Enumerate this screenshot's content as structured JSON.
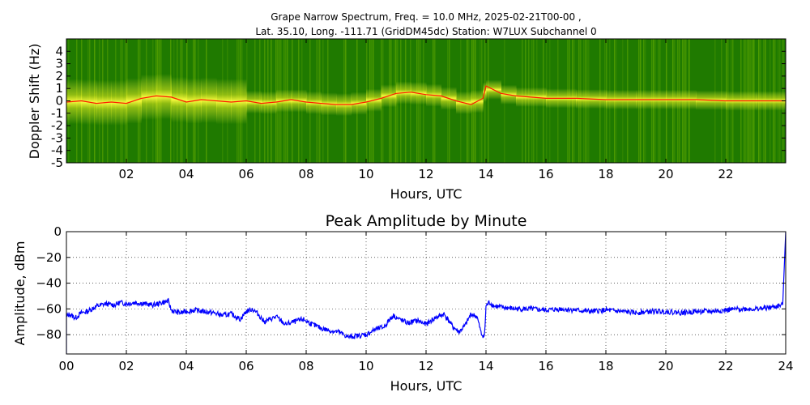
{
  "figure": {
    "title_line1": "Grape Narrow Spectrum, Freq. = 10.0 MHz, 2025-02-21T00-00 ,",
    "title_line2": "Lat.  35.10, Long. -111.71 (GridDM45dc) Station: W7LUX Subchannel 0"
  },
  "chart_data": [
    {
      "type": "heatmap",
      "title": "",
      "xlabel": "Hours, UTC",
      "ylabel": "Doppler Shift (Hz)",
      "xlim": [
        0,
        24
      ],
      "ylim": [
        -5,
        5
      ],
      "x_ticks": [
        2,
        4,
        6,
        8,
        10,
        12,
        14,
        16,
        18,
        20,
        22
      ],
      "x_tick_labels": [
        "02",
        "04",
        "06",
        "08",
        "10",
        "12",
        "14",
        "16",
        "18",
        "20",
        "22"
      ],
      "y_ticks": [
        4,
        3,
        2,
        1,
        0,
        -1,
        -2,
        -3,
        -4,
        -5
      ],
      "y_tick_labels": [
        "4",
        "3",
        "2",
        "1",
        "0",
        "-1",
        "-2",
        "-3",
        "-4",
        "-5"
      ],
      "colors": {
        "background": "#1f7a00",
        "mid": "#7fbf00",
        "high": "#ffff30",
        "peak": "#ff1a00"
      },
      "peak_trace": {
        "x": [
          0,
          0.5,
          1,
          1.5,
          2,
          2.5,
          3,
          3.5,
          4,
          4.5,
          5,
          5.5,
          6,
          6.5,
          7,
          7.5,
          8,
          8.5,
          9,
          9.5,
          10,
          10.5,
          11,
          11.5,
          12,
          12.5,
          13,
          13.5,
          13.9,
          14,
          14.5,
          15,
          16,
          17,
          18,
          19,
          20,
          21,
          22,
          23,
          24
        ],
        "y": [
          -0.1,
          0.0,
          -0.2,
          -0.1,
          -0.2,
          0.2,
          0.4,
          0.3,
          -0.1,
          0.1,
          0.0,
          -0.1,
          0.0,
          -0.2,
          -0.1,
          0.1,
          -0.1,
          -0.2,
          -0.3,
          -0.3,
          -0.1,
          0.2,
          0.6,
          0.7,
          0.5,
          0.4,
          0.0,
          -0.3,
          0.2,
          1.2,
          0.6,
          0.4,
          0.2,
          0.2,
          0.1,
          0.1,
          0.1,
          0.1,
          0.0,
          0.0,
          0.0
        ]
      }
    },
    {
      "type": "line",
      "title": "Peak Amplitude by Minute",
      "xlabel": "Hours, UTC",
      "ylabel": "Amplitude, dBm",
      "xlim": [
        0,
        24
      ],
      "ylim": [
        -95,
        0
      ],
      "grid": true,
      "x_ticks": [
        0,
        2,
        4,
        6,
        8,
        10,
        12,
        14,
        16,
        18,
        20,
        22,
        24
      ],
      "x_tick_labels": [
        "00",
        "02",
        "04",
        "06",
        "08",
        "10",
        "12",
        "14",
        "16",
        "18",
        "20",
        "22",
        "24"
      ],
      "y_ticks": [
        0,
        -20,
        -40,
        -60,
        -80
      ],
      "y_tick_labels": [
        "0",
        "−20",
        "−40",
        "−60",
        "−80"
      ],
      "line_color": "#0000ff",
      "series": [
        {
          "x": [
            0,
            0.1,
            0.3,
            0.5,
            0.7,
            1.0,
            1.3,
            1.6,
            1.8,
            2.0,
            2.3,
            2.6,
            2.9,
            3.2,
            3.4,
            3.5,
            3.6,
            3.8,
            4.0,
            4.3,
            4.6,
            4.9,
            5.2,
            5.5,
            5.8,
            6.0,
            6.2,
            6.4,
            6.6,
            6.8,
            7.0,
            7.3,
            7.6,
            7.9,
            8.2,
            8.5,
            8.8,
            9.1,
            9.4,
            9.7,
            10.0,
            10.3,
            10.6,
            10.9,
            11.1,
            11.4,
            11.7,
            12.0,
            12.3,
            12.6,
            12.9,
            13.1,
            13.3,
            13.5,
            13.7,
            13.85,
            13.95,
            14.0,
            14.1,
            14.3,
            14.6,
            15.0,
            15.5,
            16.0,
            16.5,
            17.0,
            17.5,
            18.0,
            18.5,
            19.0,
            19.5,
            20.0,
            20.5,
            21.0,
            21.5,
            22.0,
            22.5,
            23.0,
            23.5,
            23.9,
            24.0
          ],
          "y": [
            -66,
            -64,
            -67,
            -63,
            -62,
            -58,
            -56,
            -57,
            -55,
            -56,
            -55,
            -56,
            -57,
            -55,
            -54,
            -61,
            -62,
            -63,
            -62,
            -61,
            -62,
            -63,
            -65,
            -64,
            -68,
            -62,
            -60,
            -64,
            -70,
            -68,
            -66,
            -72,
            -70,
            -68,
            -72,
            -75,
            -77,
            -78,
            -82,
            -81,
            -80,
            -76,
            -74,
            -65,
            -68,
            -71,
            -69,
            -72,
            -67,
            -64,
            -74,
            -78,
            -73,
            -64,
            -66,
            -80,
            -81,
            -58,
            -55,
            -58,
            -59,
            -60,
            -60,
            -61,
            -60,
            -61,
            -62,
            -61,
            -62,
            -63,
            -62,
            -62,
            -63,
            -62,
            -62,
            -61,
            -60,
            -60,
            -59,
            -57,
            0
          ]
        }
      ]
    }
  ]
}
